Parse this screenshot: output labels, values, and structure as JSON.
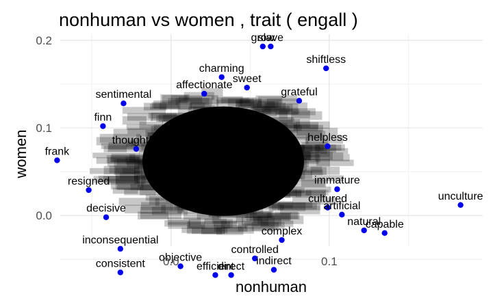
{
  "chart_data": {
    "type": "scatter",
    "title": "nonhuman vs women , trait ( engall )",
    "xlabel": "nonhuman",
    "ylabel": "women",
    "xlim": [
      -0.07,
      0.197
    ],
    "ylim": [
      -0.035,
      0.207
    ],
    "x_ticks": [
      0.0,
      0.1
    ],
    "x_tick_labels": [
      "0.0",
      "0.1"
    ],
    "y_ticks": [
      0.0,
      0.1,
      0.2
    ],
    "y_tick_labels": [
      "0.0",
      "0.1",
      "0.2"
    ],
    "grid": true,
    "legend": "none",
    "point_color": "#0000ee",
    "label_color": "#000000",
    "points": [
      {
        "label": "frank",
        "x": -0.072,
        "y": 0.063
      },
      {
        "label": "unculture",
        "x": 0.183,
        "y": 0.012
      },
      {
        "label": "capable",
        "x": 0.135,
        "y": -0.02
      },
      {
        "label": "natural",
        "x": 0.122,
        "y": -0.017
      },
      {
        "label": "artificial",
        "x": 0.108,
        "y": 0.001
      },
      {
        "label": "cultured",
        "x": 0.099,
        "y": 0.009
      },
      {
        "label": "immature",
        "x": 0.105,
        "y": 0.03
      },
      {
        "label": "shiftless",
        "x": 0.098,
        "y": 0.168
      },
      {
        "label": "grow",
        "x": 0.058,
        "y": 0.193
      },
      {
        "label": "slave",
        "x": 0.063,
        "y": 0.193
      },
      {
        "label": "charming",
        "x": 0.032,
        "y": 0.158
      },
      {
        "label": "sentimental",
        "x": -0.03,
        "y": 0.128
      },
      {
        "label": "finn",
        "x": -0.043,
        "y": 0.102
      },
      {
        "label": "resigned",
        "x": -0.052,
        "y": 0.029
      },
      {
        "label": "decisive",
        "x": -0.041,
        "y": -0.002
      },
      {
        "label": "inconsequential",
        "x": -0.032,
        "y": -0.038
      },
      {
        "label": "consistent",
        "x": -0.032,
        "y": -0.065
      },
      {
        "label": "objective",
        "x": 0.006,
        "y": -0.058
      },
      {
        "label": "indirect",
        "x": 0.065,
        "y": -0.062
      },
      {
        "label": "controlled",
        "x": 0.053,
        "y": -0.049
      },
      {
        "label": "complex",
        "x": 0.07,
        "y": -0.028
      },
      {
        "label": "helpless",
        "x": 0.099,
        "y": 0.079
      },
      {
        "label": "thoughtful",
        "x": -0.022,
        "y": 0.076
      },
      {
        "label": "efficient",
        "x": 0.028,
        "y": -0.068
      },
      {
        "label": "direct",
        "x": 0.038,
        "y": -0.068
      },
      {
        "label": "sweet",
        "x": 0.048,
        "y": 0.146
      },
      {
        "label": "affectionate",
        "x": 0.021,
        "y": 0.139
      },
      {
        "label": "grateful",
        "x": 0.081,
        "y": 0.131
      }
    ]
  }
}
